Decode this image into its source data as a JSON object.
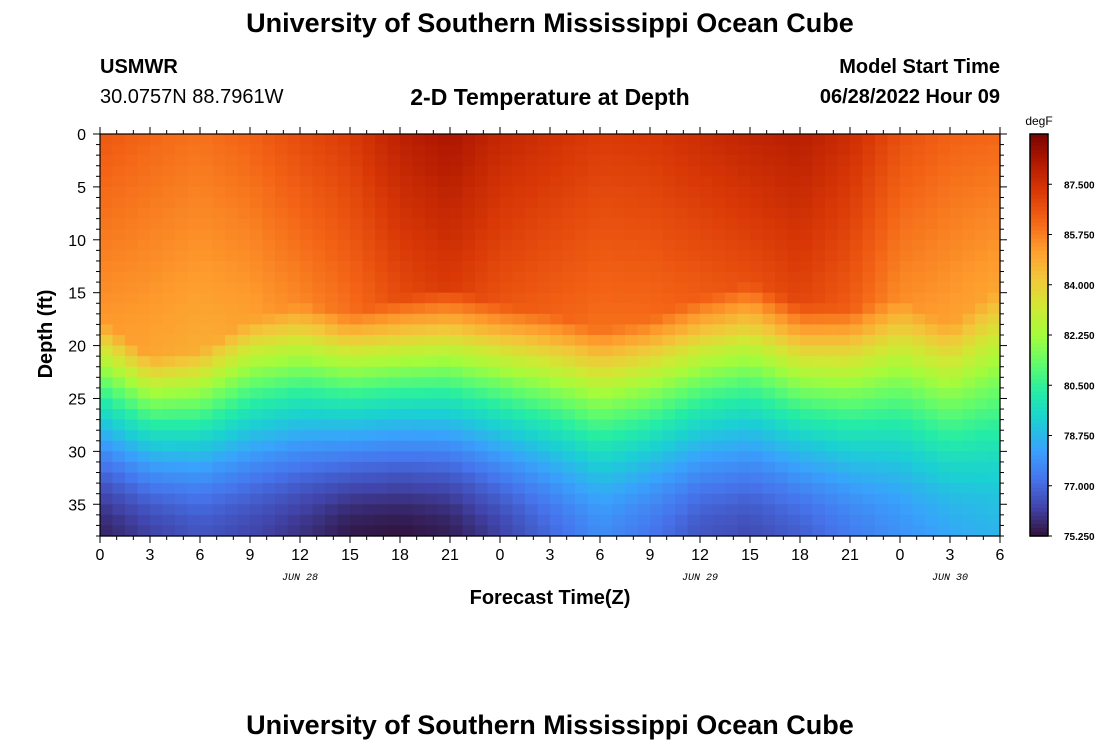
{
  "header": {
    "title": "University of Southern Mississippi Ocean Cube",
    "station_id": "USMWR",
    "coordinates": "30.0757N  88.7961W",
    "chart_title": "2-D Temperature at Depth",
    "model_start_label": "Model Start Time",
    "model_start_value": "06/28/2022 Hour 09"
  },
  "footer": {
    "title": "University of Southern Mississippi Ocean Cube"
  },
  "chart_data": {
    "type": "heatmap",
    "title": "2-D Temperature at Depth",
    "xlabel": "Forecast Time(Z)",
    "ylabel": "Depth (ft)",
    "x_tick_labels": [
      "0",
      "3",
      "6",
      "9",
      "12",
      "15",
      "18",
      "21",
      "0",
      "3",
      "6",
      "9",
      "12",
      "15",
      "18",
      "21",
      "0",
      "3",
      "6"
    ],
    "x_range_hours": [
      0,
      54
    ],
    "date_labels": [
      {
        "label": "JUN 28",
        "hour": 12
      },
      {
        "label": "JUN 29",
        "hour": 36
      },
      {
        "label": "JUN 30",
        "hour": 51
      }
    ],
    "y_ticks": [
      0,
      5,
      10,
      15,
      20,
      25,
      30,
      35
    ],
    "ylim": [
      0,
      38
    ],
    "colorbar": {
      "unit": "degF",
      "ticks": [
        "87.500",
        "85.750",
        "84.000",
        "82.250",
        "80.500",
        "78.750",
        "77.000",
        "75.250"
      ],
      "min": 75.25,
      "max": 89.25,
      "colors": [
        "#30123b",
        "#4145ab",
        "#4675ed",
        "#39a2fc",
        "#1bcfd4",
        "#24eca6",
        "#61fc6c",
        "#a4fc3b",
        "#d1e834",
        "#f3c63a",
        "#fe9b2d",
        "#f36315",
        "#d93806",
        "#b11901",
        "#7a0402"
      ]
    },
    "surface_temp_degF": [
      86.5,
      86.2,
      86.0,
      86.3,
      86.8,
      87.2,
      88.0,
      88.4,
      87.8,
      87.5,
      87.2,
      87.3,
      87.6,
      87.9,
      88.1,
      87.6,
      86.7,
      86.3,
      86.2
    ],
    "thermocline_depth_ft": [
      20.5,
      24.0,
      23.5,
      20.5,
      19.0,
      20.0,
      18.5,
      17.5,
      19.0,
      20.0,
      21.5,
      20.5,
      18.5,
      17.0,
      19.0,
      19.5,
      18.5,
      21.0,
      17.5
    ],
    "bottom_temp_degF": [
      75.6,
      76.2,
      76.6,
      76.3,
      75.9,
      75.4,
      75.3,
      75.5,
      76.2,
      77.0,
      77.8,
      77.3,
      76.6,
      76.4,
      76.8,
      77.4,
      77.9,
      78.4,
      78.7
    ]
  }
}
